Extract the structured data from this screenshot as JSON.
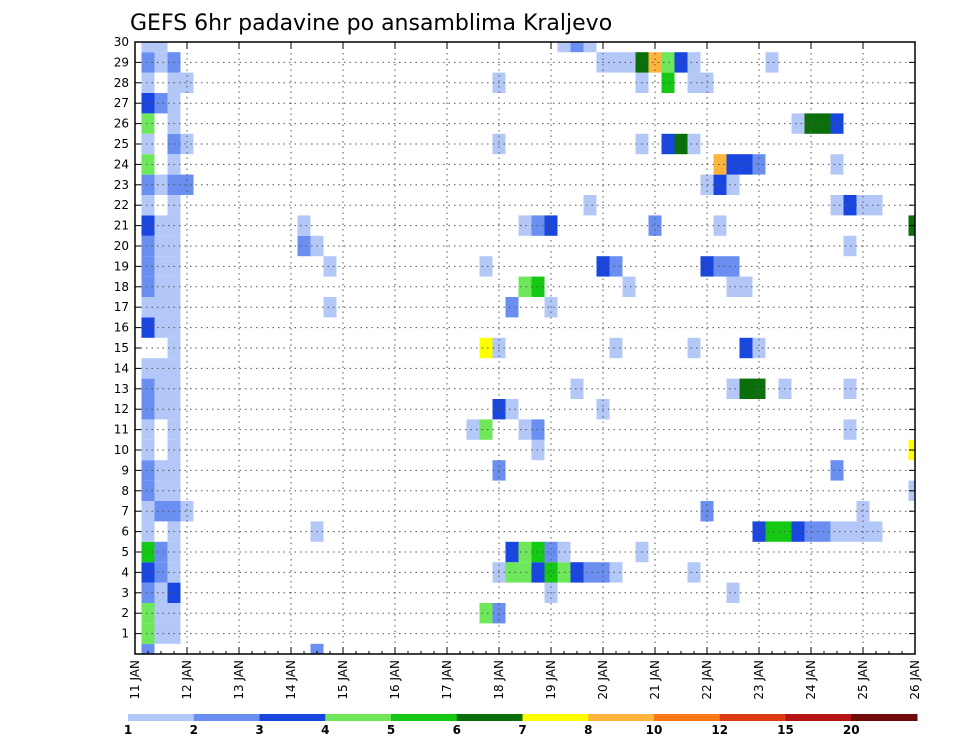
{
  "chart_data": {
    "type": "heatmap",
    "title": "GEFS 6hr padavine po ansamblima Kraljevo",
    "xlabel": "",
    "ylabel": "",
    "x_range": [
      11,
      26
    ],
    "y_range": [
      0,
      30
    ],
    "x_ticks": [
      "11 JAN",
      "12 JAN",
      "13 JAN",
      "14 JAN",
      "15 JAN",
      "16 JAN",
      "17 JAN",
      "18 JAN",
      "19 JAN",
      "20 JAN",
      "21 JAN",
      "22 JAN",
      "23 JAN",
      "24 JAN",
      "25 JAN",
      "26 JAN"
    ],
    "y_ticks": [
      "1",
      "2",
      "3",
      "4",
      "5",
      "6",
      "7",
      "8",
      "9",
      "10",
      "11",
      "12",
      "13",
      "14",
      "15",
      "16",
      "17",
      "18",
      "19",
      "20",
      "21",
      "22",
      "23",
      "24",
      "25",
      "26",
      "27",
      "28",
      "29",
      "30"
    ],
    "grid": true,
    "legend": {
      "placement": "bottom",
      "labels": [
        "1",
        "2",
        "3",
        "4",
        "5",
        "6",
        "7",
        "8",
        "10",
        "12",
        "15",
        "20"
      ],
      "colors": [
        "#b4c8f8",
        "#6a8ff0",
        "#1a46e0",
        "#6ee85a",
        "#14c814",
        "#0a6e0a",
        "#ffff00",
        "#ffb43c",
        "#ff7814",
        "#e03c14",
        "#b41414",
        "#6e0a0a"
      ]
    },
    "cells": [
      {
        "x": 11.25,
        "y": 0,
        "v": 2
      },
      {
        "x": 14.5,
        "y": 0,
        "v": 2
      },
      {
        "x": 11.25,
        "y": 1,
        "v": 4
      },
      {
        "x": 11.5,
        "y": 1,
        "v": 1
      },
      {
        "x": 11.75,
        "y": 1,
        "v": 1
      },
      {
        "x": 11.25,
        "y": 2,
        "v": 4
      },
      {
        "x": 11.5,
        "y": 2,
        "v": 1
      },
      {
        "x": 11.75,
        "y": 2,
        "v": 1
      },
      {
        "x": 17.75,
        "y": 2,
        "v": 4
      },
      {
        "x": 18.0,
        "y": 2,
        "v": 2
      },
      {
        "x": 11.25,
        "y": 3,
        "v": 2
      },
      {
        "x": 11.5,
        "y": 3,
        "v": 1
      },
      {
        "x": 11.75,
        "y": 3,
        "v": 3
      },
      {
        "x": 19.0,
        "y": 3,
        "v": 1
      },
      {
        "x": 22.5,
        "y": 3,
        "v": 1
      },
      {
        "x": 11.25,
        "y": 4,
        "v": 3
      },
      {
        "x": 11.5,
        "y": 4,
        "v": 2
      },
      {
        "x": 11.75,
        "y": 4,
        "v": 1
      },
      {
        "x": 18.0,
        "y": 4,
        "v": 1
      },
      {
        "x": 18.25,
        "y": 4,
        "v": 4
      },
      {
        "x": 18.5,
        "y": 4,
        "v": 4
      },
      {
        "x": 18.75,
        "y": 4,
        "v": 3
      },
      {
        "x": 19.0,
        "y": 4,
        "v": 5
      },
      {
        "x": 19.25,
        "y": 4,
        "v": 4
      },
      {
        "x": 19.5,
        "y": 4,
        "v": 3
      },
      {
        "x": 19.75,
        "y": 4,
        "v": 2
      },
      {
        "x": 20.0,
        "y": 4,
        "v": 2
      },
      {
        "x": 20.25,
        "y": 4,
        "v": 1
      },
      {
        "x": 21.75,
        "y": 4,
        "v": 1
      },
      {
        "x": 11.25,
        "y": 5,
        "v": 5
      },
      {
        "x": 11.5,
        "y": 5,
        "v": 2
      },
      {
        "x": 11.75,
        "y": 5,
        "v": 1
      },
      {
        "x": 18.25,
        "y": 5,
        "v": 3
      },
      {
        "x": 18.5,
        "y": 5,
        "v": 4
      },
      {
        "x": 18.75,
        "y": 5,
        "v": 5
      },
      {
        "x": 19.0,
        "y": 5,
        "v": 2
      },
      {
        "x": 19.25,
        "y": 5,
        "v": 1
      },
      {
        "x": 20.75,
        "y": 5,
        "v": 1
      },
      {
        "x": 11.25,
        "y": 6,
        "v": 1
      },
      {
        "x": 11.75,
        "y": 6,
        "v": 1
      },
      {
        "x": 14.5,
        "y": 6,
        "v": 1
      },
      {
        "x": 23.0,
        "y": 6,
        "v": 3
      },
      {
        "x": 23.25,
        "y": 6,
        "v": 5
      },
      {
        "x": 23.5,
        "y": 6,
        "v": 5
      },
      {
        "x": 23.75,
        "y": 6,
        "v": 3
      },
      {
        "x": 24.0,
        "y": 6,
        "v": 2
      },
      {
        "x": 24.25,
        "y": 6,
        "v": 2
      },
      {
        "x": 24.5,
        "y": 6,
        "v": 1
      },
      {
        "x": 24.75,
        "y": 6,
        "v": 1
      },
      {
        "x": 25.0,
        "y": 6,
        "v": 1
      },
      {
        "x": 25.25,
        "y": 6,
        "v": 1
      },
      {
        "x": 11.25,
        "y": 7,
        "v": 1
      },
      {
        "x": 11.5,
        "y": 7,
        "v": 2
      },
      {
        "x": 11.75,
        "y": 7,
        "v": 2
      },
      {
        "x": 12.0,
        "y": 7,
        "v": 1
      },
      {
        "x": 22.0,
        "y": 7,
        "v": 2
      },
      {
        "x": 25.0,
        "y": 7,
        "v": 1
      },
      {
        "x": 11.25,
        "y": 8,
        "v": 2
      },
      {
        "x": 11.5,
        "y": 8,
        "v": 1
      },
      {
        "x": 11.75,
        "y": 8,
        "v": 1
      },
      {
        "x": 26.0,
        "y": 8,
        "v": 1
      },
      {
        "x": 11.25,
        "y": 9,
        "v": 2
      },
      {
        "x": 11.5,
        "y": 9,
        "v": 1
      },
      {
        "x": 11.75,
        "y": 9,
        "v": 1
      },
      {
        "x": 18.0,
        "y": 9,
        "v": 2
      },
      {
        "x": 24.5,
        "y": 9,
        "v": 2
      },
      {
        "x": 11.25,
        "y": 10,
        "v": 1
      },
      {
        "x": 11.75,
        "y": 10,
        "v": 1
      },
      {
        "x": 18.75,
        "y": 10,
        "v": 1
      },
      {
        "x": 26.0,
        "y": 10,
        "v": 7
      },
      {
        "x": 11.25,
        "y": 11,
        "v": 1
      },
      {
        "x": 11.75,
        "y": 11,
        "v": 1
      },
      {
        "x": 17.5,
        "y": 11,
        "v": 1
      },
      {
        "x": 17.75,
        "y": 11,
        "v": 4
      },
      {
        "x": 18.5,
        "y": 11,
        "v": 1
      },
      {
        "x": 18.75,
        "y": 11,
        "v": 2
      },
      {
        "x": 24.75,
        "y": 11,
        "v": 1
      },
      {
        "x": 11.25,
        "y": 12,
        "v": 2
      },
      {
        "x": 11.5,
        "y": 12,
        "v": 1
      },
      {
        "x": 11.75,
        "y": 12,
        "v": 1
      },
      {
        "x": 18.0,
        "y": 12,
        "v": 3
      },
      {
        "x": 18.25,
        "y": 12,
        "v": 1
      },
      {
        "x": 20.0,
        "y": 12,
        "v": 1
      },
      {
        "x": 11.25,
        "y": 13,
        "v": 2
      },
      {
        "x": 11.5,
        "y": 13,
        "v": 1
      },
      {
        "x": 11.75,
        "y": 13,
        "v": 1
      },
      {
        "x": 19.5,
        "y": 13,
        "v": 1
      },
      {
        "x": 22.5,
        "y": 13,
        "v": 1
      },
      {
        "x": 22.75,
        "y": 13,
        "v": 6
      },
      {
        "x": 23.0,
        "y": 13,
        "v": 6
      },
      {
        "x": 23.5,
        "y": 13,
        "v": 1
      },
      {
        "x": 24.75,
        "y": 13,
        "v": 1
      },
      {
        "x": 11.25,
        "y": 14,
        "v": 1
      },
      {
        "x": 11.5,
        "y": 14,
        "v": 1
      },
      {
        "x": 11.75,
        "y": 14,
        "v": 1
      },
      {
        "x": 11.75,
        "y": 15,
        "v": 1
      },
      {
        "x": 17.75,
        "y": 15,
        "v": 7
      },
      {
        "x": 18.0,
        "y": 15,
        "v": 1
      },
      {
        "x": 20.25,
        "y": 15,
        "v": 1
      },
      {
        "x": 21.75,
        "y": 15,
        "v": 1
      },
      {
        "x": 22.75,
        "y": 15,
        "v": 3
      },
      {
        "x": 23.0,
        "y": 15,
        "v": 1
      },
      {
        "x": 11.25,
        "y": 16,
        "v": 3
      },
      {
        "x": 11.5,
        "y": 16,
        "v": 1
      },
      {
        "x": 11.75,
        "y": 16,
        "v": 1
      },
      {
        "x": 11.25,
        "y": 17,
        "v": 1
      },
      {
        "x": 11.5,
        "y": 17,
        "v": 1
      },
      {
        "x": 11.75,
        "y": 17,
        "v": 1
      },
      {
        "x": 14.75,
        "y": 17,
        "v": 1
      },
      {
        "x": 18.25,
        "y": 17,
        "v": 2
      },
      {
        "x": 19.0,
        "y": 17,
        "v": 1
      },
      {
        "x": 11.25,
        "y": 18,
        "v": 2
      },
      {
        "x": 11.5,
        "y": 18,
        "v": 1
      },
      {
        "x": 11.75,
        "y": 18,
        "v": 1
      },
      {
        "x": 18.5,
        "y": 18,
        "v": 4
      },
      {
        "x": 18.75,
        "y": 18,
        "v": 5
      },
      {
        "x": 20.5,
        "y": 18,
        "v": 1
      },
      {
        "x": 22.5,
        "y": 18,
        "v": 1
      },
      {
        "x": 22.75,
        "y": 18,
        "v": 1
      },
      {
        "x": 11.25,
        "y": 19,
        "v": 2
      },
      {
        "x": 11.5,
        "y": 19,
        "v": 1
      },
      {
        "x": 11.75,
        "y": 19,
        "v": 1
      },
      {
        "x": 14.75,
        "y": 19,
        "v": 1
      },
      {
        "x": 17.75,
        "y": 19,
        "v": 1
      },
      {
        "x": 20.0,
        "y": 19,
        "v": 3
      },
      {
        "x": 20.25,
        "y": 19,
        "v": 2
      },
      {
        "x": 22.0,
        "y": 19,
        "v": 3
      },
      {
        "x": 22.25,
        "y": 19,
        "v": 2
      },
      {
        "x": 22.5,
        "y": 19,
        "v": 2
      },
      {
        "x": 11.25,
        "y": 20,
        "v": 2
      },
      {
        "x": 11.5,
        "y": 20,
        "v": 1
      },
      {
        "x": 11.75,
        "y": 20,
        "v": 1
      },
      {
        "x": 14.25,
        "y": 20,
        "v": 2
      },
      {
        "x": 14.5,
        "y": 20,
        "v": 1
      },
      {
        "x": 24.75,
        "y": 20,
        "v": 1
      },
      {
        "x": 11.25,
        "y": 21,
        "v": 3
      },
      {
        "x": 11.5,
        "y": 21,
        "v": 1
      },
      {
        "x": 11.75,
        "y": 21,
        "v": 1
      },
      {
        "x": 14.25,
        "y": 21,
        "v": 1
      },
      {
        "x": 18.5,
        "y": 21,
        "v": 1
      },
      {
        "x": 18.75,
        "y": 21,
        "v": 2
      },
      {
        "x": 19.0,
        "y": 21,
        "v": 3
      },
      {
        "x": 21.0,
        "y": 21,
        "v": 2
      },
      {
        "x": 22.25,
        "y": 21,
        "v": 1
      },
      {
        "x": 26.0,
        "y": 21,
        "v": 6
      },
      {
        "x": 11.25,
        "y": 22,
        "v": 1
      },
      {
        "x": 11.75,
        "y": 22,
        "v": 1
      },
      {
        "x": 19.75,
        "y": 22,
        "v": 1
      },
      {
        "x": 24.5,
        "y": 22,
        "v": 1
      },
      {
        "x": 24.75,
        "y": 22,
        "v": 3
      },
      {
        "x": 25.0,
        "y": 22,
        "v": 1
      },
      {
        "x": 25.25,
        "y": 22,
        "v": 1
      },
      {
        "x": 11.25,
        "y": 23,
        "v": 2
      },
      {
        "x": 11.5,
        "y": 23,
        "v": 1
      },
      {
        "x": 11.75,
        "y": 23,
        "v": 2
      },
      {
        "x": 12.0,
        "y": 23,
        "v": 2
      },
      {
        "x": 22.0,
        "y": 23,
        "v": 1
      },
      {
        "x": 22.25,
        "y": 23,
        "v": 3
      },
      {
        "x": 22.5,
        "y": 23,
        "v": 1
      },
      {
        "x": 11.25,
        "y": 24,
        "v": 4
      },
      {
        "x": 11.75,
        "y": 24,
        "v": 1
      },
      {
        "x": 22.25,
        "y": 24,
        "v": 8
      },
      {
        "x": 22.5,
        "y": 24,
        "v": 3
      },
      {
        "x": 22.75,
        "y": 24,
        "v": 3
      },
      {
        "x": 23.0,
        "y": 24,
        "v": 2
      },
      {
        "x": 24.5,
        "y": 24,
        "v": 1
      },
      {
        "x": 11.25,
        "y": 25,
        "v": 1
      },
      {
        "x": 11.75,
        "y": 25,
        "v": 2
      },
      {
        "x": 12.0,
        "y": 25,
        "v": 1
      },
      {
        "x": 18.0,
        "y": 25,
        "v": 1
      },
      {
        "x": 20.75,
        "y": 25,
        "v": 1
      },
      {
        "x": 21.25,
        "y": 25,
        "v": 3
      },
      {
        "x": 21.5,
        "y": 25,
        "v": 6
      },
      {
        "x": 21.75,
        "y": 25,
        "v": 1
      },
      {
        "x": 11.25,
        "y": 26,
        "v": 4
      },
      {
        "x": 11.75,
        "y": 26,
        "v": 1
      },
      {
        "x": 23.75,
        "y": 26,
        "v": 1
      },
      {
        "x": 24.0,
        "y": 26,
        "v": 6
      },
      {
        "x": 24.25,
        "y": 26,
        "v": 6
      },
      {
        "x": 24.5,
        "y": 26,
        "v": 3
      },
      {
        "x": 11.25,
        "y": 27,
        "v": 3
      },
      {
        "x": 11.5,
        "y": 27,
        "v": 2
      },
      {
        "x": 11.75,
        "y": 27,
        "v": 1
      },
      {
        "x": 11.25,
        "y": 28,
        "v": 1
      },
      {
        "x": 11.75,
        "y": 28,
        "v": 1
      },
      {
        "x": 12.0,
        "y": 28,
        "v": 1
      },
      {
        "x": 18.0,
        "y": 28,
        "v": 1
      },
      {
        "x": 20.75,
        "y": 28,
        "v": 1
      },
      {
        "x": 21.25,
        "y": 28,
        "v": 5
      },
      {
        "x": 21.75,
        "y": 28,
        "v": 1
      },
      {
        "x": 22.0,
        "y": 28,
        "v": 1
      },
      {
        "x": 11.25,
        "y": 29,
        "v": 2
      },
      {
        "x": 11.5,
        "y": 29,
        "v": 1
      },
      {
        "x": 11.75,
        "y": 29,
        "v": 2
      },
      {
        "x": 20.0,
        "y": 29,
        "v": 1
      },
      {
        "x": 20.25,
        "y": 29,
        "v": 1
      },
      {
        "x": 20.5,
        "y": 29,
        "v": 1
      },
      {
        "x": 20.75,
        "y": 29,
        "v": 6
      },
      {
        "x": 21.0,
        "y": 29,
        "v": 8
      },
      {
        "x": 21.25,
        "y": 29,
        "v": 4
      },
      {
        "x": 21.5,
        "y": 29,
        "v": 3
      },
      {
        "x": 21.75,
        "y": 29,
        "v": 1
      },
      {
        "x": 23.25,
        "y": 29,
        "v": 1
      },
      {
        "x": 11.25,
        "y": 30,
        "v": 1
      },
      {
        "x": 11.5,
        "y": 30,
        "v": 1
      },
      {
        "x": 19.25,
        "y": 30,
        "v": 1
      },
      {
        "x": 19.5,
        "y": 30,
        "v": 2
      },
      {
        "x": 19.75,
        "y": 30,
        "v": 1
      }
    ]
  }
}
